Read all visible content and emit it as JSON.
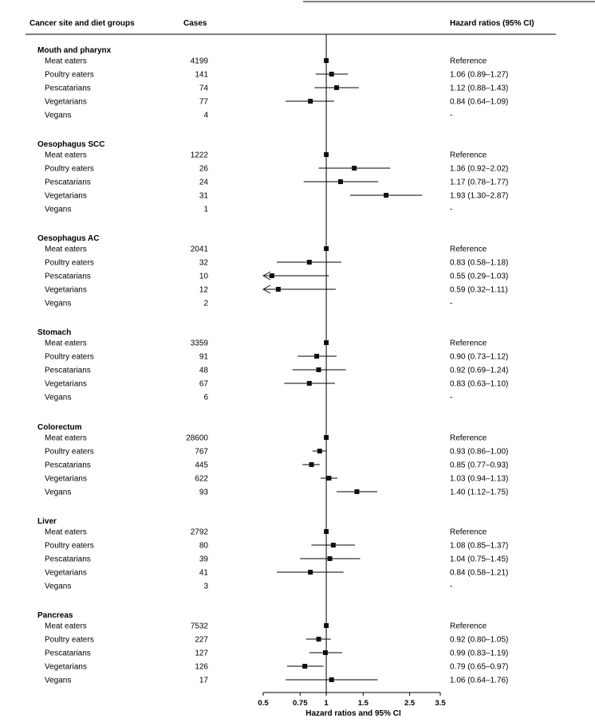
{
  "chart_data": {
    "type": "forest",
    "headers": {
      "site": "Cancer site and diet groups",
      "cases": "Cases",
      "hr": "Hazard ratios (95% CI)"
    },
    "xlabel": "Hazard ratios and 95% CI",
    "x_scale": "log",
    "xlim": [
      0.5,
      3.5
    ],
    "reference_line": 1,
    "x_ticks": [
      {
        "value": 0.5,
        "label": "0.5"
      },
      {
        "value": 0.75,
        "label": "0.75"
      },
      {
        "value": 1,
        "label": "1"
      },
      {
        "value": 1.5,
        "label": "1.5"
      },
      {
        "value": 2.5,
        "label": "2.5"
      },
      {
        "value": 3.5,
        "label": "3.5"
      }
    ],
    "groups": [
      {
        "site": "Mouth and pharynx",
        "rows": [
          {
            "label": "Meat eaters",
            "cases": "4199",
            "hr": 1,
            "lo": null,
            "hi": null,
            "text": "Reference"
          },
          {
            "label": "Poultry eaters",
            "cases": "141",
            "hr": 1.06,
            "lo": 0.89,
            "hi": 1.27,
            "text": "1.06 (0.89–1.27)"
          },
          {
            "label": "Pescatarians",
            "cases": "74",
            "hr": 1.12,
            "lo": 0.88,
            "hi": 1.43,
            "text": "1.12 (0.88–1.43)"
          },
          {
            "label": "Vegetarians",
            "cases": "77",
            "hr": 0.84,
            "lo": 0.64,
            "hi": 1.09,
            "text": "0.84 (0.64–1.09)"
          },
          {
            "label": "Vegans",
            "cases": "4",
            "hr": null,
            "lo": null,
            "hi": null,
            "text": "-"
          }
        ]
      },
      {
        "site": "Oesophagus SCC",
        "rows": [
          {
            "label": "Meat eaters",
            "cases": "1222",
            "hr": 1,
            "lo": null,
            "hi": null,
            "text": "Reference"
          },
          {
            "label": "Poultry eaters",
            "cases": "26",
            "hr": 1.36,
            "lo": 0.92,
            "hi": 2.02,
            "text": "1.36 (0.92–2.02)"
          },
          {
            "label": "Pescatarians",
            "cases": "24",
            "hr": 1.17,
            "lo": 0.78,
            "hi": 1.77,
            "text": "1.17 (0.78–1.77)"
          },
          {
            "label": "Vegetarians",
            "cases": "31",
            "hr": 1.93,
            "lo": 1.3,
            "hi": 2.87,
            "text": "1.93 (1.30–2.87)"
          },
          {
            "label": "Vegans",
            "cases": "1",
            "hr": null,
            "lo": null,
            "hi": null,
            "text": "-"
          }
        ]
      },
      {
        "site": "Oesophagus AC",
        "rows": [
          {
            "label": "Meat eaters",
            "cases": "2041",
            "hr": 1,
            "lo": null,
            "hi": null,
            "text": "Reference"
          },
          {
            "label": "Poultry eaters",
            "cases": "32",
            "hr": 0.83,
            "lo": 0.58,
            "hi": 1.18,
            "text": "0.83 (0.58–1.18)"
          },
          {
            "label": "Pescatarians",
            "cases": "10",
            "hr": 0.55,
            "lo": 0.29,
            "hi": 1.03,
            "text": "0.55 (0.29–1.03)"
          },
          {
            "label": "Vegetarians",
            "cases": "12",
            "hr": 0.59,
            "lo": 0.32,
            "hi": 1.11,
            "text": "0.59 (0.32–1.11)"
          },
          {
            "label": "Vegans",
            "cases": "2",
            "hr": null,
            "lo": null,
            "hi": null,
            "text": "-"
          }
        ]
      },
      {
        "site": "Stomach",
        "rows": [
          {
            "label": "Meat eaters",
            "cases": "3359",
            "hr": 1,
            "lo": null,
            "hi": null,
            "text": "Reference"
          },
          {
            "label": "Poultry eaters",
            "cases": "91",
            "hr": 0.9,
            "lo": 0.73,
            "hi": 1.12,
            "text": "0.90 (0.73–1.12)"
          },
          {
            "label": "Pescatarians",
            "cases": "48",
            "hr": 0.92,
            "lo": 0.69,
            "hi": 1.24,
            "text": "0.92 (0.69–1.24)"
          },
          {
            "label": "Vegetarians",
            "cases": "67",
            "hr": 0.83,
            "lo": 0.63,
            "hi": 1.1,
            "text": "0.83 (0.63–1.10)"
          },
          {
            "label": "Vegans",
            "cases": "6",
            "hr": null,
            "lo": null,
            "hi": null,
            "text": "-"
          }
        ]
      },
      {
        "site": "Colorectum",
        "rows": [
          {
            "label": "Meat eaters",
            "cases": "28600",
            "hr": 1,
            "lo": null,
            "hi": null,
            "text": "Reference"
          },
          {
            "label": "Poultry eaters",
            "cases": "767",
            "hr": 0.93,
            "lo": 0.86,
            "hi": 1.0,
            "text": "0.93 (0.86–1.00)"
          },
          {
            "label": "Pescatarians",
            "cases": "445",
            "hr": 0.85,
            "lo": 0.77,
            "hi": 0.93,
            "text": "0.85 (0.77–0.93)"
          },
          {
            "label": "Vegetarians",
            "cases": "622",
            "hr": 1.03,
            "lo": 0.94,
            "hi": 1.13,
            "text": "1.03 (0.94–1.13)"
          },
          {
            "label": "Vegans",
            "cases": "93",
            "hr": 1.4,
            "lo": 1.12,
            "hi": 1.75,
            "text": "1.40 (1.12–1.75)"
          }
        ]
      },
      {
        "site": "Liver",
        "rows": [
          {
            "label": "Meat eaters",
            "cases": "2792",
            "hr": 1,
            "lo": null,
            "hi": null,
            "text": "Reference"
          },
          {
            "label": "Poultry eaters",
            "cases": "80",
            "hr": 1.08,
            "lo": 0.85,
            "hi": 1.37,
            "text": "1.08 (0.85–1.37)"
          },
          {
            "label": "Pescatarians",
            "cases": "39",
            "hr": 1.04,
            "lo": 0.75,
            "hi": 1.45,
            "text": "1.04 (0.75–1.45)"
          },
          {
            "label": "Vegetarians",
            "cases": "41",
            "hr": 0.84,
            "lo": 0.58,
            "hi": 1.21,
            "text": "0.84 (0.58–1.21)"
          },
          {
            "label": "Vegans",
            "cases": "3",
            "hr": null,
            "lo": null,
            "hi": null,
            "text": "-"
          }
        ]
      },
      {
        "site": "Pancreas",
        "rows": [
          {
            "label": "Meat eaters",
            "cases": "7532",
            "hr": 1,
            "lo": null,
            "hi": null,
            "text": "Reference"
          },
          {
            "label": "Poultry eaters",
            "cases": "227",
            "hr": 0.92,
            "lo": 0.8,
            "hi": 1.05,
            "text": "0.92 (0.80–1.05)"
          },
          {
            "label": "Pescatarians",
            "cases": "127",
            "hr": 0.99,
            "lo": 0.83,
            "hi": 1.19,
            "text": "0.99 (0.83–1.19)"
          },
          {
            "label": "Vegetarians",
            "cases": "126",
            "hr": 0.79,
            "lo": 0.65,
            "hi": 0.97,
            "text": "0.79 (0.65–0.97)"
          },
          {
            "label": "Vegans",
            "cases": "17",
            "hr": 1.06,
            "lo": 0.64,
            "hi": 1.76,
            "text": "1.06 (0.64–1.76)"
          }
        ]
      }
    ]
  }
}
